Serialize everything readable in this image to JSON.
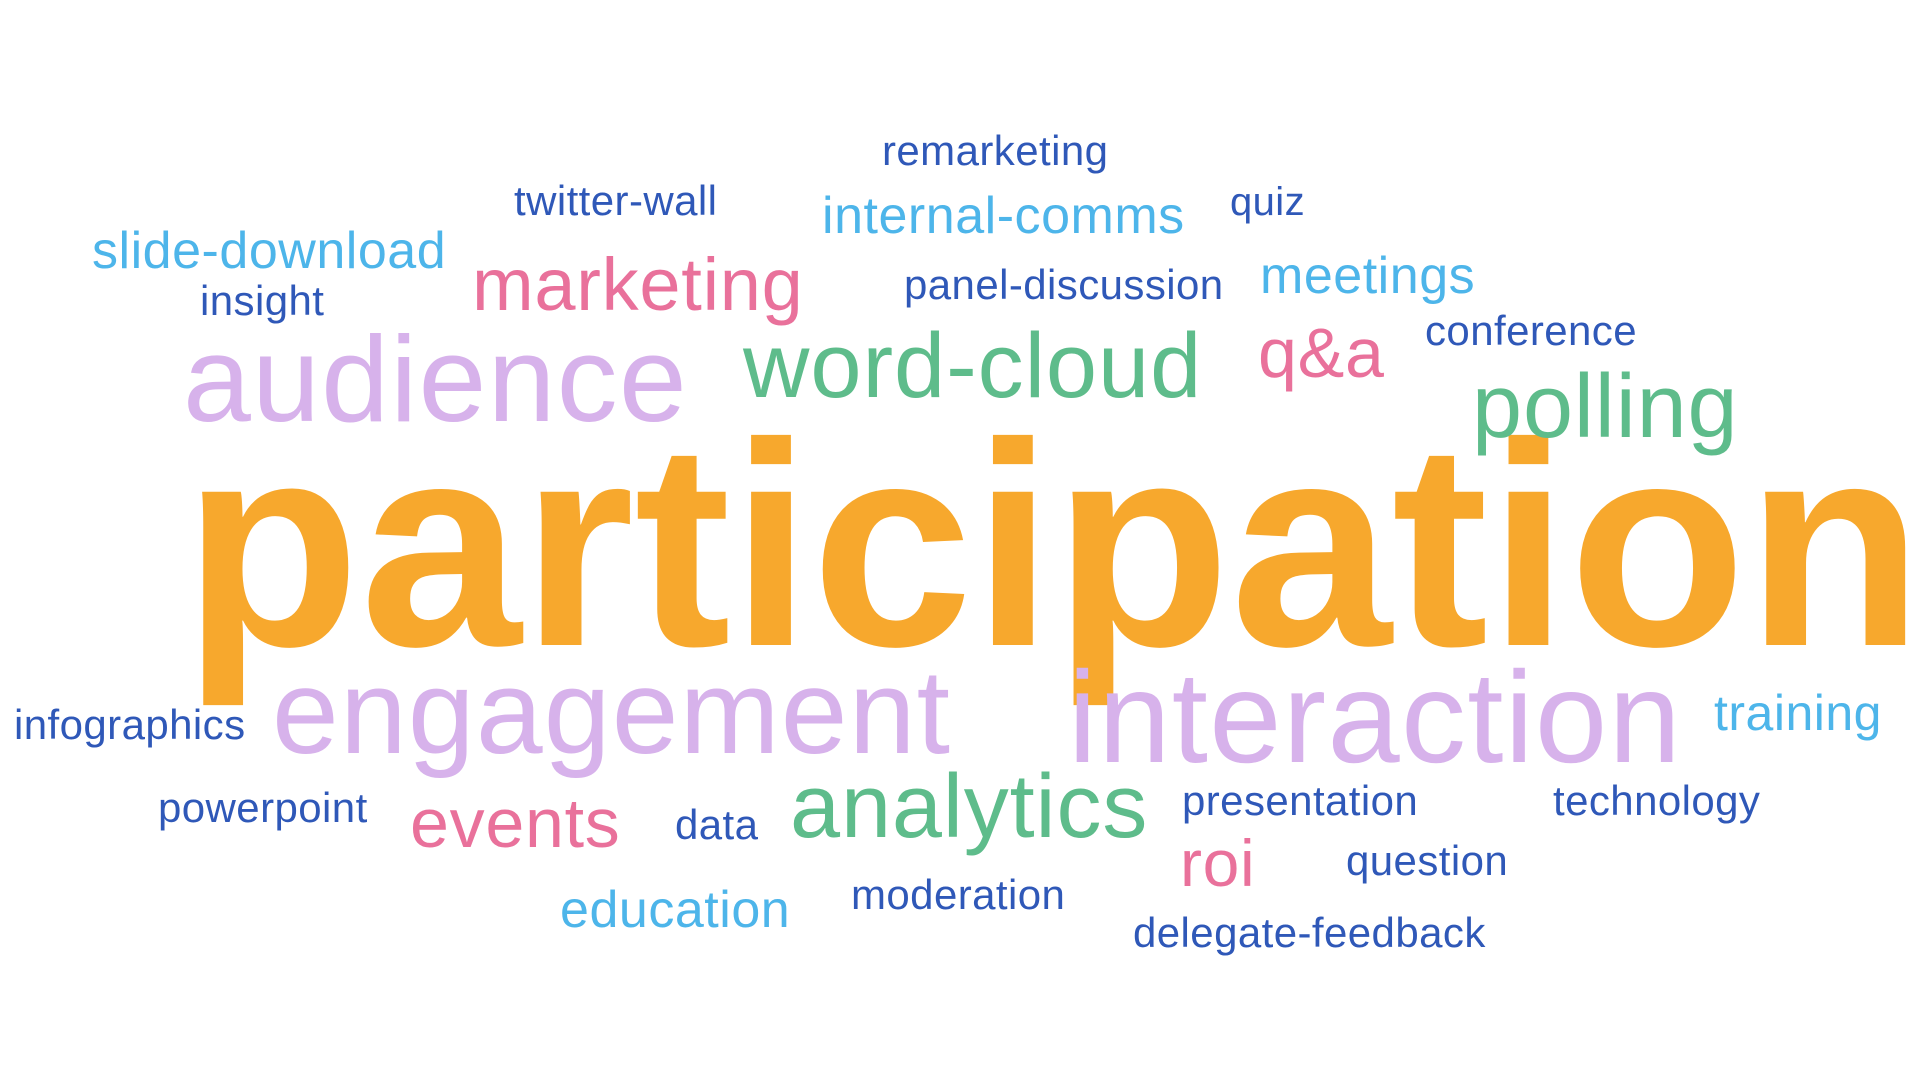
{
  "palette": {
    "orange": "#F7A82D",
    "lilac": "#D7B2EB",
    "green": "#5EBC8B",
    "pink": "#E9719B",
    "light_blue": "#4DB5EA",
    "dark_blue": "#2F58B8"
  },
  "words": {
    "participation": {
      "text": "participation",
      "color": "#F7A82D"
    },
    "engagement": {
      "text": "engagement",
      "color": "#D7B2EB"
    },
    "interaction": {
      "text": "interaction",
      "color": "#D7B2EB"
    },
    "audience": {
      "text": "audience",
      "color": "#D7B2EB"
    },
    "word_cloud": {
      "text": "word-cloud",
      "color": "#5EBC8B"
    },
    "polling": {
      "text": "polling",
      "color": "#5EBC8B"
    },
    "analytics": {
      "text": "analytics",
      "color": "#5EBC8B"
    },
    "marketing": {
      "text": "marketing",
      "color": "#E9719B"
    },
    "q_and_a": {
      "text": "q&a",
      "color": "#E9719B"
    },
    "events": {
      "text": "events",
      "color": "#E9719B"
    },
    "roi": {
      "text": "roi",
      "color": "#E9719B"
    },
    "meetings": {
      "text": "meetings",
      "color": "#4DB5EA"
    },
    "internal_comms": {
      "text": "internal-comms",
      "color": "#4DB5EA"
    },
    "slide_download": {
      "text": "slide-download",
      "color": "#4DB5EA"
    },
    "training": {
      "text": "training",
      "color": "#4DB5EA"
    },
    "education": {
      "text": "education",
      "color": "#4DB5EA"
    },
    "remarketing": {
      "text": "remarketing",
      "color": "#2F58B8"
    },
    "twitter_wall": {
      "text": "twitter-wall",
      "color": "#2F58B8"
    },
    "quiz": {
      "text": "quiz",
      "color": "#2F58B8"
    },
    "insight": {
      "text": "insight",
      "color": "#2F58B8"
    },
    "panel_discussion": {
      "text": "panel-discussion",
      "color": "#2F58B8"
    },
    "conference": {
      "text": "conference",
      "color": "#2F58B8"
    },
    "infographics": {
      "text": "infographics",
      "color": "#2F58B8"
    },
    "powerpoint": {
      "text": "powerpoint",
      "color": "#2F58B8"
    },
    "data": {
      "text": "data",
      "color": "#2F58B8"
    },
    "presentation": {
      "text": "presentation",
      "color": "#2F58B8"
    },
    "technology": {
      "text": "technology",
      "color": "#2F58B8"
    },
    "question": {
      "text": "question",
      "color": "#2F58B8"
    },
    "moderation": {
      "text": "moderation",
      "color": "#2F58B8"
    },
    "delegate_feedback": {
      "text": "delegate-feedback",
      "color": "#2F58B8"
    }
  }
}
